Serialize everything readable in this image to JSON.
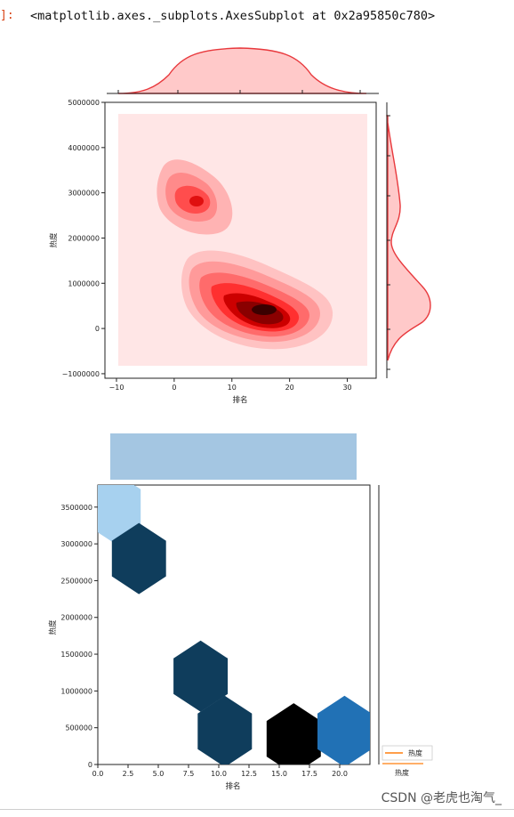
{
  "cell": {
    "prompt": "]:",
    "output_repr": "<matplotlib.axes._subplots.AxesSubplot at 0x2a95850c780>"
  },
  "watermark": "CSDN @老虎也淘气_",
  "colors": {
    "kde_fill": "#ffc9c9",
    "kde_line": "#e8393d",
    "kde_background": "#ffe6e6",
    "hex_marginal": "#a4c6e2",
    "hex_dark": "#0f3d5c",
    "hex_light": "#a7d1ef",
    "hex_mid": "#2171b5",
    "hex_max": "#000000",
    "legend_line": "#ff7f0e"
  },
  "chart_data": [
    {
      "type": "kde-jointplot",
      "xlabel": "排名",
      "ylabel": "热度",
      "xlim": [
        -12,
        35
      ],
      "ylim": [
        -1100000,
        5000000
      ],
      "xticks": [
        -10,
        0,
        10,
        20,
        30
      ],
      "xtick_labels": [
        "−10",
        "0",
        "10",
        "20",
        "30"
      ],
      "yticks": [
        -1000000,
        0,
        1000000,
        2000000,
        3000000,
        4000000,
        5000000
      ],
      "ytick_labels": [
        "−1000000",
        "0",
        "1000000",
        "2000000",
        "3000000",
        "4000000",
        "5000000"
      ],
      "grid": false,
      "density_peaks": [
        {
          "x": 15,
          "y": 500000
        },
        {
          "x": 3,
          "y": 2850000
        }
      ]
    },
    {
      "type": "hexbin-jointplot",
      "xlabel": "排名",
      "ylabel": "热度",
      "xlim": [
        0,
        22.5
      ],
      "ylim": [
        0,
        3800000
      ],
      "xticks": [
        0,
        2.5,
        5,
        7.5,
        10,
        12.5,
        15,
        17.5,
        20
      ],
      "xtick_labels": [
        "0.0",
        "2.5",
        "5.0",
        "7.5",
        "10.0",
        "12.5",
        "15.0",
        "17.5",
        "20.0"
      ],
      "yticks": [
        0,
        500000,
        1000000,
        1500000,
        2000000,
        2500000,
        3000000,
        3500000
      ],
      "ytick_labels": [
        "0",
        "500000",
        "1000000",
        "1500000",
        "2000000",
        "2500000",
        "3000000",
        "3500000"
      ],
      "grid": false,
      "hexagons": [
        {
          "x": 1.3,
          "y": 3500000,
          "level": "light"
        },
        {
          "x": 3.4,
          "y": 2800000,
          "level": "dark"
        },
        {
          "x": 8.5,
          "y": 1200000,
          "level": "dark"
        },
        {
          "x": 10.5,
          "y": 450000,
          "level": "dark"
        },
        {
          "x": 16.2,
          "y": 350000,
          "level": "max"
        },
        {
          "x": 20.4,
          "y": 450000,
          "level": "mid"
        }
      ],
      "legend": {
        "entries": [
          "热度"
        ],
        "placement": "lower-right"
      },
      "right_marginal_label": "热度"
    }
  ]
}
